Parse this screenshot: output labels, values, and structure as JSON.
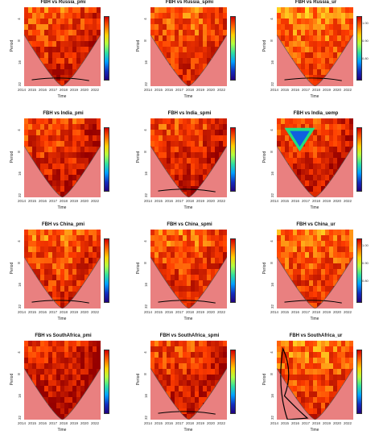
{
  "chart_data": [
    {
      "type": "heatmap",
      "title": "FBH  vs  Russia_pmi",
      "xlabel": "Time",
      "ylabel": "Period",
      "x_ticks": [
        "2014",
        "2015",
        "2016",
        "2017",
        "2018",
        "2019",
        "2020",
        "2022"
      ],
      "y_ticks": [
        "4",
        "8",
        "16",
        "32"
      ],
      "colorbar_ticks": [
        "",
        "",
        "",
        "",
        "",
        "",
        ""
      ],
      "mean": 0.55,
      "dark_right": 0.3,
      "low_band": true,
      "blob": null
    },
    {
      "type": "heatmap",
      "title": "FBH  vs  Russia_spmi",
      "xlabel": "Time",
      "ylabel": "Period",
      "x_ticks": [
        "2014",
        "2015",
        "2016",
        "2017",
        "2018",
        "2019",
        "2020",
        "2022"
      ],
      "y_ticks": [
        "4",
        "8",
        "16",
        "32"
      ],
      "colorbar_ticks": [
        "",
        "",
        "",
        "",
        "",
        "",
        ""
      ],
      "mean": 0.6,
      "dark_right": 0.2,
      "low_band": false,
      "blob": null
    },
    {
      "type": "heatmap",
      "title": "FBH  vs  Russia_ur",
      "xlabel": "Time",
      "ylabel": "Period",
      "x_ticks": [
        "2014",
        "2015",
        "2016",
        "2017",
        "2018",
        "2019",
        "2020",
        "2022"
      ],
      "y_ticks": [
        "4",
        "8",
        "16",
        "32"
      ],
      "colorbar_ticks": [
        "1.00",
        "",
        "0.90",
        "",
        "0.80",
        "",
        ""
      ],
      "mean": 0.7,
      "dark_right": 0.1,
      "low_band": true,
      "blob": null
    },
    {
      "type": "heatmap",
      "title": "FBH  vs  India_pmi",
      "xlabel": "Time",
      "ylabel": "Period",
      "x_ticks": [
        "2014",
        "2015",
        "2016",
        "2017",
        "2018",
        "2019",
        "2020",
        "2022"
      ],
      "y_ticks": [
        "4",
        "8",
        "16",
        "32"
      ],
      "colorbar_ticks": [
        "",
        "",
        "",
        "",
        "",
        "",
        ""
      ],
      "mean": 0.5,
      "dark_right": 0.4,
      "low_band": false,
      "blob": null
    },
    {
      "type": "heatmap",
      "title": "FBH  vs  India_spmi",
      "xlabel": "Time",
      "ylabel": "Period",
      "x_ticks": [
        "2014",
        "2015",
        "2016",
        "2017",
        "2018",
        "2019",
        "2020",
        "2022"
      ],
      "y_ticks": [
        "4",
        "8",
        "16",
        "32"
      ],
      "colorbar_ticks": [
        "",
        "",
        "",
        "",
        "",
        "",
        ""
      ],
      "mean": 0.5,
      "dark_right": 0.3,
      "low_band": true,
      "blob": null
    },
    {
      "type": "heatmap",
      "title": "FBH  vs  India_uemp",
      "xlabel": "Time",
      "ylabel": "Period",
      "x_ticks": [
        "2014",
        "2015",
        "2016",
        "2017",
        "2018",
        "2019",
        "2020",
        "2022"
      ],
      "y_ticks": [
        "4",
        "8",
        "16",
        "32"
      ],
      "colorbar_ticks": [
        "",
        "",
        "",
        "",
        "",
        "",
        ""
      ],
      "mean": 0.5,
      "dark_right": 0.3,
      "low_band": false,
      "blob": "triangle"
    },
    {
      "type": "heatmap",
      "title": "FBH  vs  China_pmi",
      "xlabel": "Time",
      "ylabel": "Period",
      "x_ticks": [
        "2014",
        "2015",
        "2016",
        "2017",
        "2018",
        "2019",
        "2020",
        "2022"
      ],
      "y_ticks": [
        "4",
        "8",
        "16",
        "32"
      ],
      "colorbar_ticks": [
        "",
        "",
        "",
        "",
        "",
        "",
        ""
      ],
      "mean": 0.6,
      "dark_right": 0.3,
      "low_band": true,
      "blob": null
    },
    {
      "type": "heatmap",
      "title": "FBH  vs  China_spmi",
      "xlabel": "Time",
      "ylabel": "Period",
      "x_ticks": [
        "2014",
        "2015",
        "2016",
        "2017",
        "2018",
        "2019",
        "2020",
        "2022"
      ],
      "y_ticks": [
        "4",
        "8",
        "16",
        "32"
      ],
      "colorbar_ticks": [
        "",
        "",
        "",
        "",
        "",
        "",
        ""
      ],
      "mean": 0.6,
      "dark_right": 0.2,
      "low_band": true,
      "blob": null
    },
    {
      "type": "heatmap",
      "title": "FBH  vs  China_ur",
      "xlabel": "Time",
      "ylabel": "Period",
      "x_ticks": [
        "2014",
        "2015",
        "2016",
        "2017",
        "2018",
        "2019",
        "2020",
        "2022"
      ],
      "y_ticks": [
        "4",
        "8",
        "16",
        "32"
      ],
      "colorbar_ticks": [
        "1.00",
        "",
        "0.90",
        "",
        "0.80",
        "",
        ""
      ],
      "mean": 0.65,
      "dark_right": 0.1,
      "low_band": true,
      "blob": null
    },
    {
      "type": "heatmap",
      "title": "FBH  vs  SouthAfrica_pmi",
      "xlabel": "Time",
      "ylabel": "Period",
      "x_ticks": [
        "2014",
        "2015",
        "2016",
        "2017",
        "2018",
        "2019",
        "2020",
        "2022"
      ],
      "y_ticks": [
        "4",
        "8",
        "16",
        "32"
      ],
      "colorbar_ticks": [
        "",
        "",
        "",
        "",
        "",
        "",
        ""
      ],
      "mean": 0.4,
      "dark_right": 0.4,
      "low_band": false,
      "blob": null
    },
    {
      "type": "heatmap",
      "title": "FBH  vs  SouthAfrica_spmi",
      "xlabel": "Time",
      "ylabel": "Period",
      "x_ticks": [
        "2014",
        "2015",
        "2016",
        "2017",
        "2018",
        "2019",
        "2020",
        "2022"
      ],
      "y_ticks": [
        "4",
        "8",
        "16",
        "32"
      ],
      "colorbar_ticks": [
        "",
        "",
        "",
        "",
        "",
        "",
        ""
      ],
      "mean": 0.5,
      "dark_right": 0.3,
      "low_band": true,
      "blob": null
    },
    {
      "type": "heatmap",
      "title": "FBH  vs  SouthAfrica_ur",
      "xlabel": "Time",
      "ylabel": "Period",
      "x_ticks": [
        "2014",
        "2015",
        "2016",
        "2017",
        "2018",
        "2019",
        "2020",
        "2022"
      ],
      "y_ticks": [
        "4",
        "8",
        "16",
        "32"
      ],
      "colorbar_ticks": [
        "",
        "",
        "",
        "",
        "",
        "",
        ""
      ],
      "mean": 0.65,
      "dark_right": 0.1,
      "low_band": false,
      "blob": "left-region"
    }
  ]
}
